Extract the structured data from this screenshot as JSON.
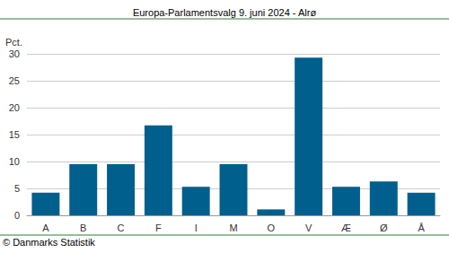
{
  "chart_data": {
    "type": "bar",
    "title": "Europa-Parlamentsvalg 9. juni 2024 - Alrø",
    "y_label": "Pct.",
    "source": "© Danmarks Statistik",
    "categories": [
      "A",
      "B",
      "C",
      "F",
      "I",
      "M",
      "O",
      "V",
      "Æ",
      "Ø",
      "Å"
    ],
    "values": [
      4.2,
      9.5,
      9.5,
      16.7,
      5.3,
      9.5,
      1.1,
      29.3,
      5.3,
      6.3,
      4.2
    ],
    "color": "#005f8c",
    "ylim": [
      0,
      30
    ],
    "yticks": [
      0,
      5,
      10,
      15,
      20,
      25,
      30
    ],
    "grid": true
  }
}
